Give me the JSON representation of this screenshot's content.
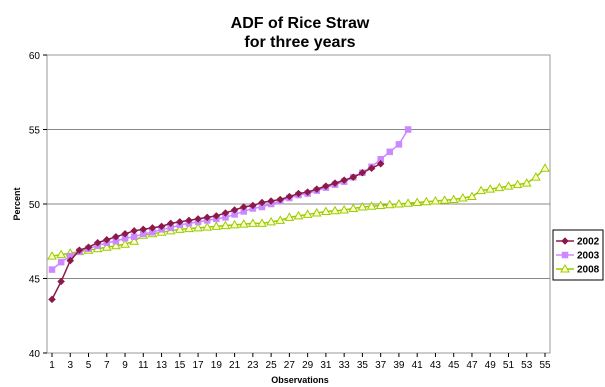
{
  "chart_data": {
    "type": "line",
    "title": [
      "ADF of Rice Straw",
      "for three years"
    ],
    "xlabel": "Observations",
    "ylabel": "Percent",
    "ylim": [
      40,
      60
    ],
    "yticks": [
      40,
      45,
      50,
      55,
      60
    ],
    "xlim": [
      1,
      55
    ],
    "xticks": [
      1,
      3,
      5,
      7,
      9,
      11,
      13,
      15,
      17,
      19,
      21,
      23,
      25,
      27,
      29,
      31,
      33,
      35,
      37,
      39,
      41,
      43,
      45,
      47,
      49,
      51,
      53,
      55
    ],
    "grid": "horizontal",
    "legend_position": "right",
    "series": [
      {
        "name": "2002",
        "color": "#8B1A4A",
        "marker": "diamond",
        "values": [
          43.6,
          44.8,
          46.2,
          46.9,
          47.1,
          47.4,
          47.6,
          47.8,
          48.0,
          48.2,
          48.3,
          48.4,
          48.5,
          48.7,
          48.8,
          48.9,
          49.0,
          49.1,
          49.2,
          49.4,
          49.6,
          49.8,
          49.9,
          50.1,
          50.2,
          50.3,
          50.5,
          50.7,
          50.8,
          51.0,
          51.2,
          51.4,
          51.6,
          51.8,
          52.1,
          52.4,
          52.7
        ]
      },
      {
        "name": "2003",
        "color": "#CC88FF",
        "marker": "square",
        "values": [
          45.6,
          46.1,
          46.5,
          46.8,
          47.0,
          47.2,
          47.4,
          47.5,
          47.7,
          47.8,
          48.0,
          48.1,
          48.3,
          48.4,
          48.6,
          48.7,
          48.8,
          48.9,
          49.0,
          49.1,
          49.3,
          49.5,
          49.7,
          49.8,
          50.0,
          50.2,
          50.4,
          50.6,
          50.7,
          50.9,
          51.1,
          51.3,
          51.5,
          51.8,
          52.1,
          52.5,
          53.0,
          53.5,
          54.0,
          55.0
        ]
      },
      {
        "name": "2008",
        "color": "#99CC00",
        "marker": "triangle",
        "values": [
          46.5,
          46.6,
          46.7,
          46.8,
          46.9,
          47.0,
          47.1,
          47.2,
          47.3,
          47.5,
          47.9,
          48.0,
          48.1,
          48.2,
          48.3,
          48.35,
          48.4,
          48.45,
          48.5,
          48.55,
          48.6,
          48.65,
          48.7,
          48.7,
          48.8,
          48.9,
          49.1,
          49.2,
          49.3,
          49.4,
          49.5,
          49.55,
          49.6,
          49.7,
          49.8,
          49.85,
          49.9,
          49.95,
          50.0,
          50.05,
          50.1,
          50.15,
          50.2,
          50.25,
          50.3,
          50.4,
          50.5,
          50.9,
          51.0,
          51.1,
          51.2,
          51.3,
          51.4,
          51.8,
          52.4
        ]
      }
    ]
  }
}
